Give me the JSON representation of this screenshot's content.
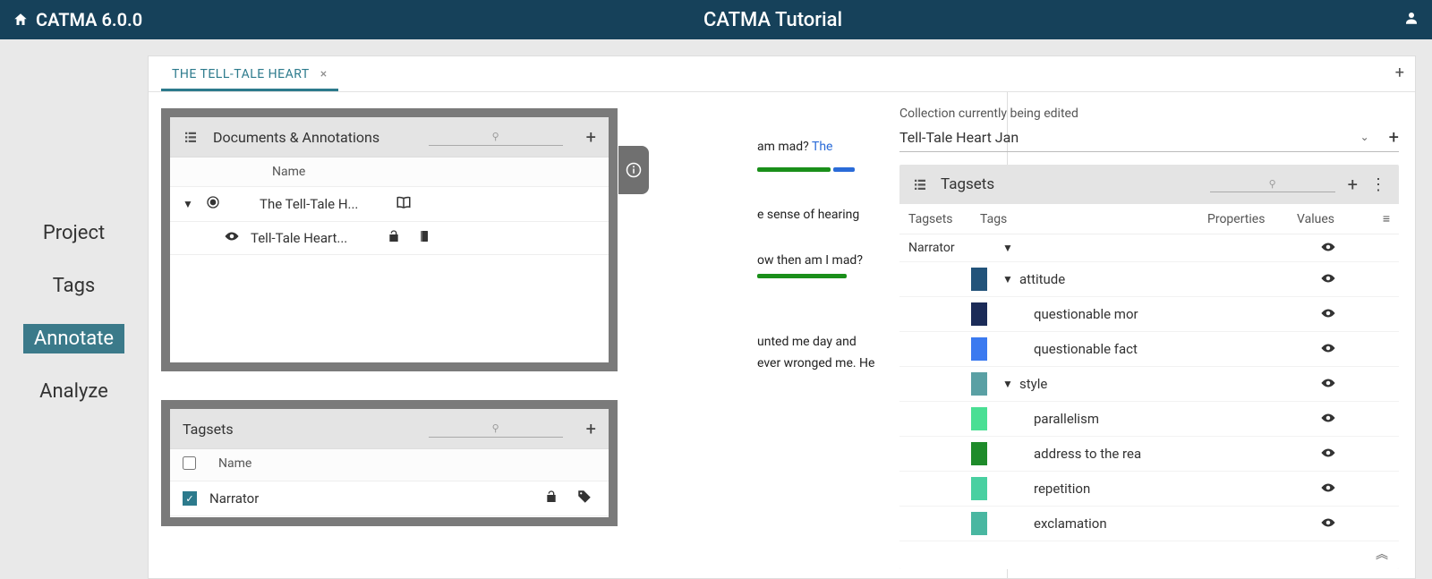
{
  "topbar": {
    "app_name": "CATMA 6.0.0",
    "project_title": "CATMA Tutorial"
  },
  "left_nav": {
    "items": [
      {
        "label": "Project",
        "active": false
      },
      {
        "label": "Tags",
        "active": false
      },
      {
        "label": "Annotate",
        "active": true
      },
      {
        "label": "Analyze",
        "active": false
      }
    ]
  },
  "tabs": {
    "active_tab": "THE TELL-TALE HEART"
  },
  "doc_panel": {
    "title": "Documents & Annotations",
    "col_name": "Name",
    "rows": [
      {
        "expand": true,
        "selected": true,
        "label": "The Tell-Tale H...",
        "icons": [
          "book-open"
        ]
      },
      {
        "expand": false,
        "visible": true,
        "label": "Tell-Tale Heart...",
        "icons": [
          "unlock",
          "book-closed"
        ]
      }
    ]
  },
  "tagset_panel": {
    "title": "Tagsets",
    "col_name": "Name",
    "rows": [
      {
        "checked": true,
        "label": "Narrator",
        "icons": [
          "unlock",
          "tag"
        ]
      }
    ]
  },
  "mid_text": {
    "fragments": [
      {
        "text": "am mad?",
        "blue_text": "The"
      },
      {
        "text": "e sense of hearing"
      },
      {
        "text": "ow then am I mad?"
      },
      {
        "text": "unted me day and",
        "text2": "ever wronged me. He"
      }
    ]
  },
  "right": {
    "collection_label": "Collection currently being edited",
    "collection_name": "Tell-Tale Heart Jan",
    "tagsets_title": "Tagsets",
    "cols": {
      "tagsets": "Tagsets",
      "tags": "Tags",
      "properties": "Properties",
      "values": "Values"
    },
    "tree": [
      {
        "level": 0,
        "tagset": "Narrator",
        "expand": true,
        "swatch": null,
        "label": ""
      },
      {
        "level": 1,
        "swatch": "#22537a",
        "expand": true,
        "label": "attitude"
      },
      {
        "level": 2,
        "swatch": "#1b2b58",
        "label": "questionable mor"
      },
      {
        "level": 2,
        "swatch": "#3b7af0",
        "label": "questionable fact"
      },
      {
        "level": 1,
        "swatch": "#5aa0a4",
        "expand": true,
        "label": "style"
      },
      {
        "level": 2,
        "swatch": "#4adf94",
        "label": "parallelism"
      },
      {
        "level": 2,
        "swatch": "#1e8b2a",
        "label": "address to the rea"
      },
      {
        "level": 2,
        "swatch": "#49d0a1",
        "label": "repetition"
      },
      {
        "level": 2,
        "swatch": "#49b7a1",
        "label": "exclamation"
      }
    ]
  },
  "colors": {
    "topbar": "#16415a",
    "workspace_bg": "#e9e9e9",
    "panel_bg": "#e4e4e4",
    "active_nav": "#3b7a8a",
    "tab_accent": "#2c7a8c"
  }
}
